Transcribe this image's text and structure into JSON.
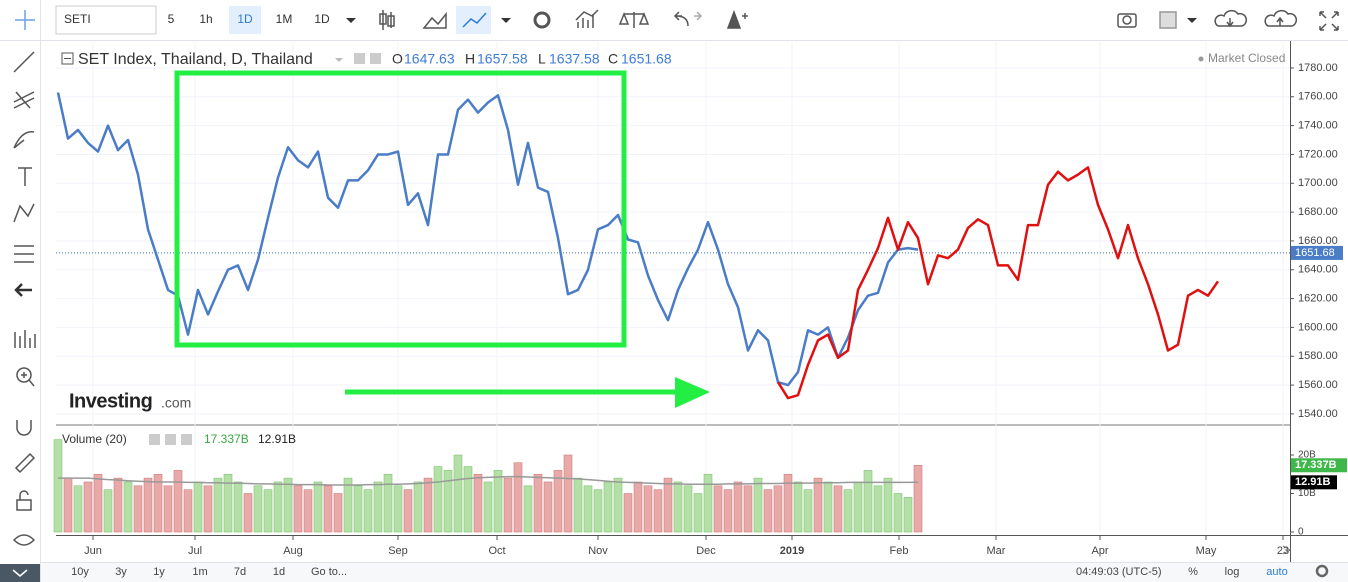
{
  "toolbar": {
    "symbol": "SETI",
    "intervals": [
      "5",
      "1h",
      "1D",
      "1M",
      "1D"
    ]
  },
  "header": {
    "title": "SET Index, Thailand, D, Thailand",
    "ohlc": [
      {
        "key": "O",
        "value": 1647.63
      },
      {
        "key": "H",
        "value": 1657.58
      },
      {
        "key": "L",
        "value": 1637.58
      },
      {
        "key": "C",
        "value": 1651.68
      }
    ],
    "status": "Market Closed",
    "watermark": [
      "Investing",
      ".com"
    ]
  },
  "chart_data": {
    "type": "line",
    "x": [
      0,
      1,
      2,
      3,
      4,
      5,
      6,
      7,
      8,
      9,
      10,
      11,
      12,
      13,
      14,
      15,
      16,
      17,
      18,
      19,
      20,
      21,
      22,
      23,
      24,
      25,
      26,
      27,
      28,
      29,
      30,
      31,
      32,
      33,
      34,
      35,
      36,
      37,
      38,
      39,
      40,
      41,
      42,
      43,
      44,
      45,
      46,
      47,
      48,
      49,
      50,
      51,
      52,
      53,
      54,
      55,
      56,
      57,
      58,
      59,
      60,
      61,
      62,
      63,
      64,
      65,
      66,
      67,
      68,
      69,
      70,
      71,
      72,
      73,
      74,
      75,
      76,
      77,
      78,
      79,
      80,
      81,
      82,
      83,
      84,
      85,
      86,
      87,
      88,
      89,
      90,
      91,
      92,
      93,
      94,
      95,
      96,
      97,
      98,
      99,
      100,
      101,
      102,
      103,
      104,
      105,
      106,
      107,
      108,
      109,
      110,
      111,
      112,
      113,
      114,
      115,
      116
    ],
    "series": [
      {
        "color": "#4a7cc7",
        "values": [
          1763,
          1731,
          1737,
          1728,
          1722,
          1740,
          1723,
          1730,
          1706,
          1668,
          1647,
          1626,
          1622,
          1595,
          1626,
          1609,
          1625,
          1640,
          1643,
          1626,
          1647,
          1676,
          1704,
          1725,
          1716,
          1711,
          1722,
          1690,
          1683,
          1702,
          1702,
          1709,
          1720,
          1720,
          1722,
          1685,
          1693,
          1671,
          1720,
          1720,
          1751,
          1758,
          1749,
          1756,
          1761,
          1737,
          1699,
          1728,
          1697,
          1694,
          1662,
          1623,
          1626,
          1640,
          1668,
          1671,
          1678,
          1661,
          1659,
          1636,
          1619,
          1605,
          1626,
          1641,
          1654,
          1673,
          1654,
          1630,
          1614,
          1584,
          1598,
          1591,
          1562,
          1560,
          1569,
          1598,
          1595,
          1600,
          1579,
          1593,
          1612,
          1622,
          1624,
          1645,
          1654,
          1655,
          1654,
          null,
          null,
          null,
          null,
          null,
          null,
          null,
          null,
          null,
          null,
          null,
          null,
          null,
          null,
          null,
          null,
          null,
          null,
          null,
          null,
          null,
          null,
          null,
          null,
          null,
          null,
          null,
          null,
          null,
          null
        ]
      },
      {
        "color": "#e01010",
        "values": [
          null,
          null,
          null,
          null,
          null,
          null,
          null,
          null,
          null,
          null,
          null,
          null,
          null,
          null,
          null,
          null,
          null,
          null,
          null,
          null,
          null,
          null,
          null,
          null,
          null,
          null,
          null,
          null,
          null,
          null,
          null,
          null,
          null,
          null,
          null,
          null,
          null,
          null,
          null,
          null,
          null,
          null,
          null,
          null,
          null,
          null,
          null,
          null,
          null,
          null,
          null,
          null,
          null,
          null,
          null,
          null,
          null,
          null,
          null,
          null,
          null,
          null,
          null,
          null,
          null,
          null,
          null,
          null,
          null,
          null,
          null,
          null,
          1562,
          1551,
          1553,
          1574,
          1591,
          1595,
          1579,
          1584,
          1626,
          1640,
          1655,
          1676,
          1654,
          1673,
          1662,
          1630,
          1650,
          1648,
          1654,
          1669,
          1675,
          1671,
          1643,
          1643,
          1633,
          1671,
          1671,
          1699,
          1708,
          1702,
          1706,
          1711,
          1685,
          1668,
          1648,
          1671,
          1648,
          1630,
          1609,
          1584,
          1588,
          1622,
          1626,
          1622,
          1632
        ]
      }
    ],
    "xlim": [
      -0.2,
      123.2
    ],
    "xticks": [
      {
        "value": 3.5,
        "label": "Jun"
      },
      {
        "value": 13.7,
        "label": "Jul"
      },
      {
        "value": 23.5,
        "label": "Aug"
      },
      {
        "value": 34,
        "label": "Sep"
      },
      {
        "value": 43.9,
        "label": "Oct"
      },
      {
        "value": 54,
        "label": "Nov"
      },
      {
        "value": 64.8,
        "label": "Dec"
      },
      {
        "value": 73.4,
        "label": "2019"
      },
      {
        "value": 84.1,
        "label": "Feb"
      },
      {
        "value": 93.8,
        "label": "Mar"
      },
      {
        "value": 104.2,
        "label": "Apr"
      },
      {
        "value": 114.8,
        "label": "May"
      },
      {
        "value": 122.5,
        "label": "23"
      }
    ],
    "ylim": [
      1533,
      1798
    ],
    "yticks": [
      {
        "value": 1540,
        "label": "1540.00"
      },
      {
        "value": 1560,
        "label": "1560.00"
      },
      {
        "value": 1580,
        "label": "1580.00"
      },
      {
        "value": 1600,
        "label": "1600.00"
      },
      {
        "value": 1620,
        "label": "1620.00"
      },
      {
        "value": 1640,
        "label": "1640.00"
      },
      {
        "value": 1660,
        "label": "1660.00"
      },
      {
        "value": 1680,
        "label": "1680.00"
      },
      {
        "value": 1700,
        "label": "1700.00"
      },
      {
        "value": 1720,
        "label": "1720.00"
      },
      {
        "value": 1740,
        "label": "1740.00"
      },
      {
        "value": 1760,
        "label": "1760.00"
      },
      {
        "value": 1780,
        "label": "1780.00"
      }
    ],
    "grid": true,
    "last_price": 1651.68,
    "volume": {
      "name": "Volume (20)",
      "values": [
        24,
        14,
        12,
        13,
        15,
        11,
        14,
        13,
        12,
        14,
        15,
        12,
        16,
        11,
        13,
        12,
        14,
        15,
        13,
        10,
        12,
        11,
        13,
        14,
        12,
        11,
        13,
        12,
        10,
        14,
        12,
        11,
        13,
        15,
        12,
        11,
        13,
        14,
        17,
        16,
        20,
        17,
        15,
        13,
        16,
        14,
        18,
        12,
        15,
        13,
        16,
        20,
        14,
        12,
        11,
        13,
        14,
        10,
        13,
        12,
        11,
        14,
        13,
        12,
        10,
        15,
        12,
        11,
        13,
        12,
        14,
        11,
        12,
        15,
        13,
        11,
        14,
        13,
        12,
        11,
        13,
        16,
        12,
        14,
        10,
        9,
        17.337
      ],
      "last_label": "17.337B",
      "ma_values": [
        14,
        14,
        14,
        14,
        13.8,
        13.6,
        13.5,
        13.3,
        13.2,
        13.1,
        13,
        13,
        13,
        12.9,
        12.9,
        12.8,
        12.8,
        12.7,
        12.7,
        12.6,
        12.5,
        12.5,
        12.4,
        12.4,
        12.3,
        12.3,
        12.3,
        12.2,
        12.2,
        12.2,
        12.2,
        12.3,
        12.3,
        12.4,
        12.4,
        12.5,
        12.6,
        12.8,
        13,
        13.3,
        13.6,
        13.9,
        14.1,
        14.2,
        14.3,
        14.4,
        14.4,
        14.3,
        14.2,
        14.1,
        14,
        13.9,
        13.8,
        13.6,
        13.4,
        13.2,
        13,
        12.9,
        12.8,
        12.7,
        12.6,
        12.5,
        12.5,
        12.4,
        12.4,
        12.4,
        12.4,
        12.5,
        12.5,
        12.5,
        12.6,
        12.6,
        12.6,
        12.7,
        12.7,
        12.7,
        12.8,
        12.8,
        12.8,
        12.9,
        12.9,
        12.9,
        12.9,
        12.9,
        12.9,
        12.9,
        12.91
      ],
      "ma_last_label": "12.91B",
      "ylim": [
        0,
        27.8
      ],
      "yticks": [
        0,
        {
          "value": 10,
          "label": "10B"
        },
        {
          "value": 20,
          "label": "20B"
        }
      ]
    }
  },
  "footer": {
    "ranges": [
      "10y",
      "3y",
      "1y",
      "1m",
      "7d",
      "1d"
    ],
    "goto": "Go to...",
    "time": "04:49:03 (UTC-5)",
    "options": [
      "%",
      "log",
      "auto"
    ]
  }
}
